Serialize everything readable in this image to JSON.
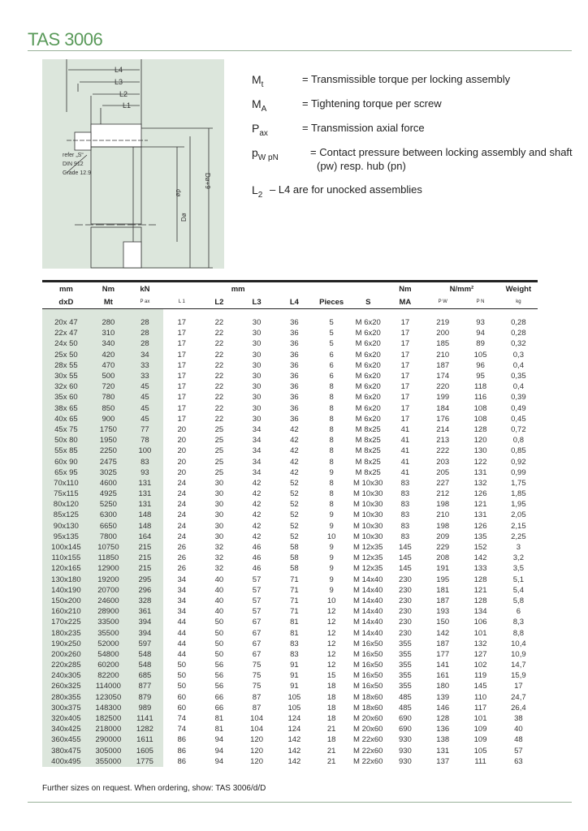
{
  "title": "TAS 3006",
  "diagram": {
    "labels": [
      "L4",
      "L3",
      "L2",
      "L1",
      "refer „S“",
      "DIN 912",
      "Grade 12.9",
      "dø",
      "Dø",
      "Dø+9"
    ]
  },
  "legend": [
    {
      "sym": "M",
      "sub": "t",
      "text": "= Transmissible torque per locking assembly"
    },
    {
      "sym": "M",
      "sub": "A",
      "text": "= Tightening torque per screw"
    },
    {
      "sym": "P",
      "sub": "ax",
      "text": "= Transmission axial force"
    },
    {
      "sym": "p",
      "sub": "W p",
      "sub2": "N",
      "text": "= Contact pressure between locking assembly and shaft",
      "text2": "(pw) resp. hub (pn)"
    },
    {
      "sym": "L",
      "sub": "2",
      "text": "– L4 are for unocked assemblies"
    }
  ],
  "table": {
    "header1": [
      "mm",
      "Nm",
      "kN",
      "mm",
      "Nm",
      "N/mm²",
      "Weight"
    ],
    "header2": [
      "dxD",
      "Mt",
      "P ax",
      "L 1",
      "L2",
      "L3",
      "L4",
      "Pieces",
      "S",
      "MA",
      "P W",
      "P N",
      "kg"
    ],
    "rows": [
      [
        "20x 47",
        "280",
        "28",
        "17",
        "22",
        "30",
        "36",
        "5",
        "M 6x20",
        "17",
        "219",
        "93",
        "0,28"
      ],
      [
        "22x 47",
        "310",
        "28",
        "17",
        "22",
        "30",
        "36",
        "5",
        "M 6x20",
        "17",
        "200",
        "94",
        "0,28"
      ],
      [
        "24x 50",
        "340",
        "28",
        "17",
        "22",
        "30",
        "36",
        "5",
        "M 6x20",
        "17",
        "185",
        "89",
        "0,32"
      ],
      [
        "25x 50",
        "420",
        "34",
        "17",
        "22",
        "30",
        "36",
        "6",
        "M 6x20",
        "17",
        "210",
        "105",
        "0,3"
      ],
      [
        "28x 55",
        "470",
        "33",
        "17",
        "22",
        "30",
        "36",
        "6",
        "M 6x20",
        "17",
        "187",
        "96",
        "0,4"
      ],
      [
        "30x 55",
        "500",
        "33",
        "17",
        "22",
        "30",
        "36",
        "6",
        "M 6x20",
        "17",
        "174",
        "95",
        "0,35"
      ],
      [
        "32x 60",
        "720",
        "45",
        "17",
        "22",
        "30",
        "36",
        "8",
        "M 6x20",
        "17",
        "220",
        "118",
        "0,4"
      ],
      [
        "35x 60",
        "780",
        "45",
        "17",
        "22",
        "30",
        "36",
        "8",
        "M 6x20",
        "17",
        "199",
        "116",
        "0,39"
      ],
      [
        "38x 65",
        "850",
        "45",
        "17",
        "22",
        "30",
        "36",
        "8",
        "M 6x20",
        "17",
        "184",
        "108",
        "0,49"
      ],
      [
        "40x 65",
        "900",
        "45",
        "17",
        "22",
        "30",
        "36",
        "8",
        "M 6x20",
        "17",
        "176",
        "108",
        "0,45"
      ],
      [
        "45x 75",
        "1750",
        "77",
        "20",
        "25",
        "34",
        "42",
        "8",
        "M 8x25",
        "41",
        "214",
        "128",
        "0,72"
      ],
      [
        "50x 80",
        "1950",
        "78",
        "20",
        "25",
        "34",
        "42",
        "8",
        "M 8x25",
        "41",
        "213",
        "120",
        "0,8"
      ],
      [
        "55x 85",
        "2250",
        "100",
        "20",
        "25",
        "34",
        "42",
        "8",
        "M 8x25",
        "41",
        "222",
        "130",
        "0,85"
      ],
      [
        "60x 90",
        "2475",
        "83",
        "20",
        "25",
        "34",
        "42",
        "8",
        "M 8x25",
        "41",
        "203",
        "122",
        "0,92"
      ],
      [
        "65x 95",
        "3025",
        "93",
        "20",
        "25",
        "34",
        "42",
        "9",
        "M 8x25",
        "41",
        "205",
        "131",
        "0,99"
      ],
      [
        "70x110",
        "4600",
        "131",
        "24",
        "30",
        "42",
        "52",
        "8",
        "M 10x30",
        "83",
        "227",
        "132",
        "1,75"
      ],
      [
        "75x115",
        "4925",
        "131",
        "24",
        "30",
        "42",
        "52",
        "8",
        "M 10x30",
        "83",
        "212",
        "126",
        "1,85"
      ],
      [
        "80x120",
        "5250",
        "131",
        "24",
        "30",
        "42",
        "52",
        "8",
        "M 10x30",
        "83",
        "198",
        "121",
        "1,95"
      ],
      [
        "85x125",
        "6300",
        "148",
        "24",
        "30",
        "42",
        "52",
        "9",
        "M 10x30",
        "83",
        "210",
        "131",
        "2,05"
      ],
      [
        "90x130",
        "6650",
        "148",
        "24",
        "30",
        "42",
        "52",
        "9",
        "M 10x30",
        "83",
        "198",
        "126",
        "2,15"
      ],
      [
        "95x135",
        "7800",
        "164",
        "24",
        "30",
        "42",
        "52",
        "10",
        "M 10x30",
        "83",
        "209",
        "135",
        "2,25"
      ],
      [
        "100x145",
        "10750",
        "215",
        "26",
        "32",
        "46",
        "58",
        "9",
        "M 12x35",
        "145",
        "229",
        "152",
        "3"
      ],
      [
        "110x155",
        "11850",
        "215",
        "26",
        "32",
        "46",
        "58",
        "9",
        "M 12x35",
        "145",
        "208",
        "142",
        "3,2"
      ],
      [
        "120x165",
        "12900",
        "215",
        "26",
        "32",
        "46",
        "58",
        "9",
        "M 12x35",
        "145",
        "191",
        "133",
        "3,5"
      ],
      [
        "130x180",
        "19200",
        "295",
        "34",
        "40",
        "57",
        "71",
        "9",
        "M 14x40",
        "230",
        "195",
        "128",
        "5,1"
      ],
      [
        "140x190",
        "20700",
        "296",
        "34",
        "40",
        "57",
        "71",
        "9",
        "M 14x40",
        "230",
        "181",
        "121",
        "5,4"
      ],
      [
        "150x200",
        "24600",
        "328",
        "34",
        "40",
        "57",
        "71",
        "10",
        "M 14x40",
        "230",
        "187",
        "128",
        "5,8"
      ],
      [
        "160x210",
        "28900",
        "361",
        "34",
        "40",
        "57",
        "71",
        "12",
        "M 14x40",
        "230",
        "193",
        "134",
        "6"
      ],
      [
        "170x225",
        "33500",
        "394",
        "44",
        "50",
        "67",
        "81",
        "12",
        "M 14x40",
        "230",
        "150",
        "106",
        "8,3"
      ],
      [
        "180x235",
        "35500",
        "394",
        "44",
        "50",
        "67",
        "81",
        "12",
        "M 14x40",
        "230",
        "142",
        "101",
        "8,8"
      ],
      [
        "190x250",
        "52000",
        "597",
        "44",
        "50",
        "67",
        "83",
        "12",
        "M 16x50",
        "355",
        "187",
        "132",
        "10,4"
      ],
      [
        "200x260",
        "54800",
        "548",
        "44",
        "50",
        "67",
        "83",
        "12",
        "M 16x50",
        "355",
        "177",
        "127",
        "10,9"
      ],
      [
        "220x285",
        "60200",
        "548",
        "50",
        "56",
        "75",
        "91",
        "12",
        "M 16x50",
        "355",
        "141",
        "102",
        "14,7"
      ],
      [
        "240x305",
        "82200",
        "685",
        "50",
        "56",
        "75",
        "91",
        "15",
        "M 16x50",
        "355",
        "161",
        "119",
        "15,9"
      ],
      [
        "260x325",
        "114000",
        "877",
        "50",
        "56",
        "75",
        "91",
        "18",
        "M 16x50",
        "355",
        "180",
        "145",
        "17"
      ],
      [
        "280x355",
        "123050",
        "879",
        "60",
        "66",
        "87",
        "105",
        "18",
        "M 18x60",
        "485",
        "139",
        "110",
        "24,7"
      ],
      [
        "300x375",
        "148300",
        "989",
        "60",
        "66",
        "87",
        "105",
        "18",
        "M 18x60",
        "485",
        "146",
        "117",
        "26,4"
      ],
      [
        "320x405",
        "182500",
        "1141",
        "74",
        "81",
        "104",
        "124",
        "18",
        "M 20x60",
        "690",
        "128",
        "101",
        "38"
      ],
      [
        "340x425",
        "218000",
        "1282",
        "74",
        "81",
        "104",
        "124",
        "21",
        "M 20x60",
        "690",
        "136",
        "109",
        "40"
      ],
      [
        "360x455",
        "290000",
        "1611",
        "86",
        "94",
        "120",
        "142",
        "18",
        "M 22x60",
        "930",
        "138",
        "109",
        "48"
      ],
      [
        "380x475",
        "305000",
        "1605",
        "86",
        "94",
        "120",
        "142",
        "21",
        "M 22x60",
        "930",
        "131",
        "105",
        "57"
      ],
      [
        "400x495",
        "355000",
        "1775",
        "86",
        "94",
        "120",
        "142",
        "21",
        "M 22x60",
        "930",
        "137",
        "111",
        "63"
      ]
    ]
  },
  "footer": "Further sizes on request. When ordering, show: TAS 3006/d/D",
  "colors": {
    "accent": "#5a9a5a",
    "panel": "#dce6dc"
  }
}
